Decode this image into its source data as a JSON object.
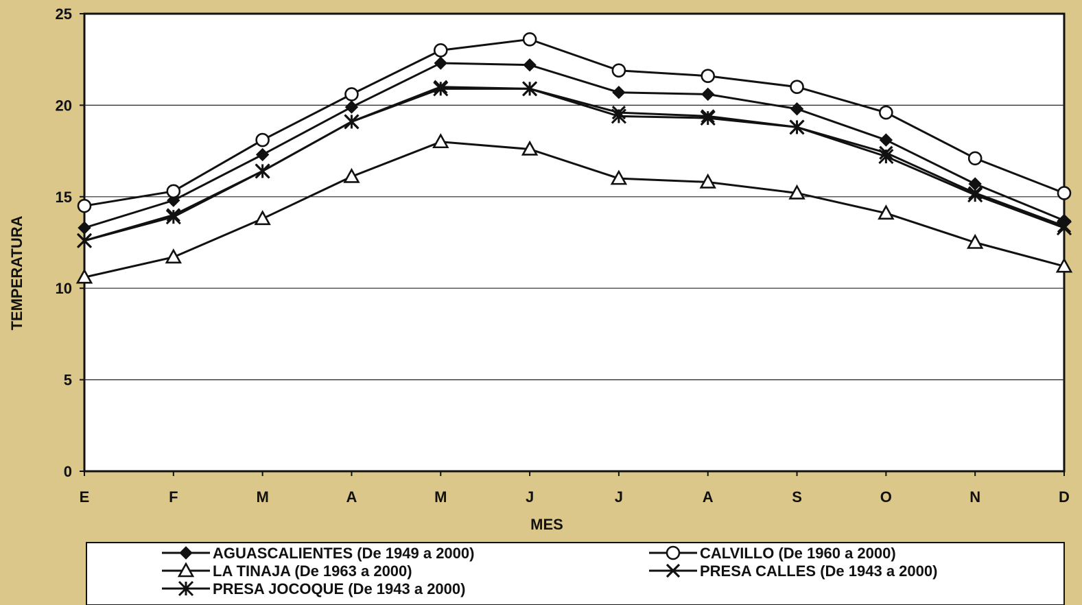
{
  "chart_data": {
    "type": "line",
    "title": "",
    "xlabel": "MES",
    "ylabel": "TEMPERATURA",
    "categories": [
      "E",
      "F",
      "M",
      "A",
      "M",
      "J",
      "J",
      "A",
      "S",
      "O",
      "N",
      "D"
    ],
    "ylim": [
      0,
      25
    ],
    "yticks": [
      0,
      5,
      10,
      15,
      20,
      25
    ],
    "grid": "horizontal",
    "legend_position": "bottom",
    "series": [
      {
        "name": "AGUASCALIENTES (De 1949 a 2000)",
        "marker": "filled-diamond",
        "values": [
          13.3,
          14.8,
          17.3,
          19.9,
          22.3,
          22.2,
          20.7,
          20.6,
          19.8,
          18.1,
          15.7,
          13.7
        ]
      },
      {
        "name": "CALVILLO (De 1960 a 2000)",
        "marker": "open-circle",
        "values": [
          14.5,
          15.3,
          18.1,
          20.6,
          23.0,
          23.6,
          21.9,
          21.6,
          21.0,
          19.6,
          17.1,
          15.2
        ]
      },
      {
        "name": "LA TINAJA (De 1963 a 2000)",
        "marker": "open-triangle",
        "values": [
          10.6,
          11.7,
          13.8,
          16.1,
          18.0,
          17.6,
          16.0,
          15.8,
          15.2,
          14.1,
          12.5,
          11.2
        ]
      },
      {
        "name": "PRESA CALLES (De 1943 a 2000)",
        "marker": "x-cross",
        "values": [
          12.6,
          14.0,
          16.4,
          19.1,
          21.0,
          20.9,
          19.6,
          19.4,
          18.8,
          17.4,
          15.2,
          13.4
        ]
      },
      {
        "name": "PRESA JOCOQUE (De 1943 a 2000)",
        "marker": "asterisk",
        "values": [
          12.6,
          13.9,
          16.4,
          19.1,
          20.9,
          20.9,
          19.4,
          19.3,
          18.8,
          17.2,
          15.1,
          13.3
        ]
      }
    ]
  },
  "colors": {
    "background": "#dcc78a",
    "plot_area": "#ffffff",
    "lines": "#111111",
    "gridlines": "#222222"
  }
}
